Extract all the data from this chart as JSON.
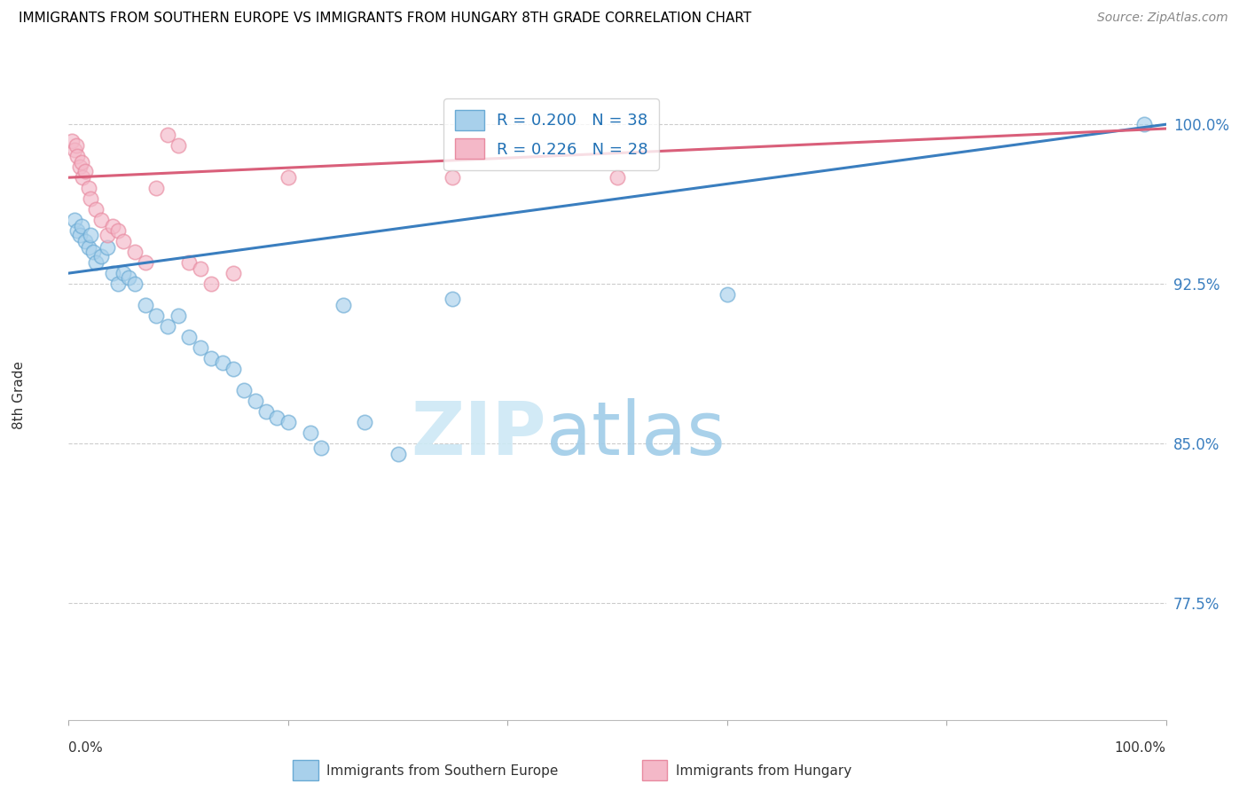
{
  "title": "IMMIGRANTS FROM SOUTHERN EUROPE VS IMMIGRANTS FROM HUNGARY 8TH GRADE CORRELATION CHART",
  "source": "Source: ZipAtlas.com",
  "ylabel": "8th Grade",
  "y_ticks": [
    77.5,
    85.0,
    92.5,
    100.0
  ],
  "y_tick_labels": [
    "77.5%",
    "85.0%",
    "92.5%",
    "100.0%"
  ],
  "x_range": [
    0.0,
    100.0
  ],
  "y_range": [
    72.0,
    102.5
  ],
  "legend_blue_R": "0.200",
  "legend_blue_N": "38",
  "legend_pink_R": "0.226",
  "legend_pink_N": "28",
  "blue_color": "#a8d0eb",
  "pink_color": "#f4b8c8",
  "blue_line_color": "#3a7ebf",
  "pink_line_color": "#d95f7a",
  "blue_dot_edge": "#6aaad4",
  "pink_dot_edge": "#e88aa0",
  "watermark_zip_color": "#cde8f5",
  "watermark_atlas_color": "#a0cce8",
  "blue_dots_x": [
    0.5,
    0.8,
    1.0,
    1.2,
    1.5,
    1.8,
    2.0,
    2.2,
    2.5,
    3.0,
    3.5,
    4.0,
    4.5,
    5.0,
    5.5,
    6.0,
    7.0,
    8.0,
    9.0,
    10.0,
    11.0,
    12.0,
    13.0,
    14.0,
    15.0,
    16.0,
    17.0,
    18.0,
    19.0,
    20.0,
    22.0,
    23.0,
    25.0,
    27.0,
    30.0,
    35.0,
    60.0,
    98.0
  ],
  "blue_dots_y": [
    95.5,
    95.0,
    94.8,
    95.2,
    94.5,
    94.2,
    94.8,
    94.0,
    93.5,
    93.8,
    94.2,
    93.0,
    92.5,
    93.0,
    92.8,
    92.5,
    91.5,
    91.0,
    90.5,
    91.0,
    90.0,
    89.5,
    89.0,
    88.8,
    88.5,
    87.5,
    87.0,
    86.5,
    86.2,
    86.0,
    85.5,
    84.8,
    91.5,
    86.0,
    84.5,
    91.8,
    92.0,
    100.0
  ],
  "pink_dots_x": [
    0.3,
    0.5,
    0.7,
    0.8,
    1.0,
    1.2,
    1.3,
    1.5,
    1.8,
    2.0,
    2.5,
    3.0,
    3.5,
    4.0,
    4.5,
    5.0,
    6.0,
    7.0,
    8.0,
    9.0,
    10.0,
    11.0,
    12.0,
    13.0,
    15.0,
    20.0,
    35.0,
    50.0
  ],
  "pink_dots_y": [
    99.2,
    98.8,
    99.0,
    98.5,
    98.0,
    98.2,
    97.5,
    97.8,
    97.0,
    96.5,
    96.0,
    95.5,
    94.8,
    95.2,
    95.0,
    94.5,
    94.0,
    93.5,
    97.0,
    99.5,
    99.0,
    93.5,
    93.2,
    92.5,
    93.0,
    97.5,
    97.5,
    97.5
  ],
  "blue_line_x0": 0.0,
  "blue_line_y0": 93.0,
  "blue_line_x1": 100.0,
  "blue_line_y1": 100.0,
  "pink_line_x0": 0.0,
  "pink_line_y0": 97.5,
  "pink_line_x1": 100.0,
  "pink_line_y1": 99.8
}
